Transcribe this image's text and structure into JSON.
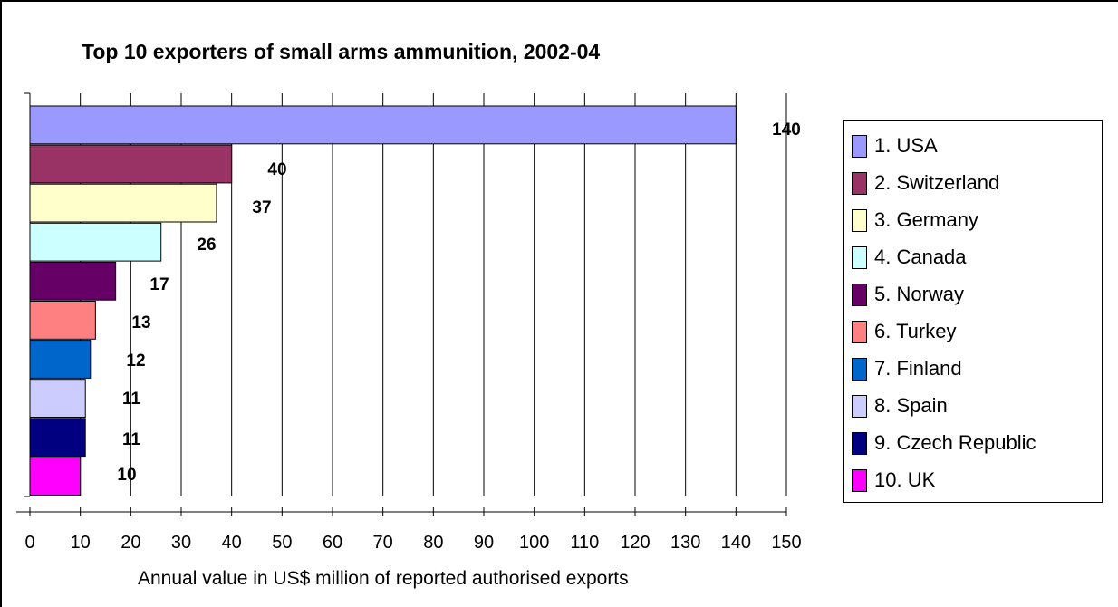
{
  "chart_data": {
    "type": "bar",
    "orientation": "horizontal",
    "title": "Top 10 exporters of small arms ammunition, 2002-04",
    "xlabel": "Annual value in US$ million of reported authorised exports",
    "ylabel": "",
    "xlim": [
      0,
      150
    ],
    "x_ticks": [
      "0",
      "10",
      "20",
      "30",
      "40",
      "50",
      "60",
      "70",
      "80",
      "90",
      "100",
      "110",
      "120",
      "130",
      "140",
      "150"
    ],
    "grid": "vertical",
    "legend_position": "right",
    "categories": [
      "1. USA",
      "2. Switzerland",
      "3. Germany",
      "4. Canada",
      "5. Norway",
      "6. Turkey",
      "7. Finland",
      "8. Spain",
      "9. Czech Republic",
      "10. UK"
    ],
    "values": [
      140,
      40,
      37,
      26,
      17,
      13,
      12,
      11,
      11,
      10
    ],
    "data_labels": [
      "140",
      "40",
      "37",
      "26",
      "17",
      "13",
      "12",
      "11",
      "11",
      "10"
    ],
    "colors": [
      "#9999ff",
      "#993366",
      "#ffffcc",
      "#ccffff",
      "#660066",
      "#ff8080",
      "#0066cc",
      "#ccccff",
      "#000080",
      "#ff00ff"
    ]
  }
}
